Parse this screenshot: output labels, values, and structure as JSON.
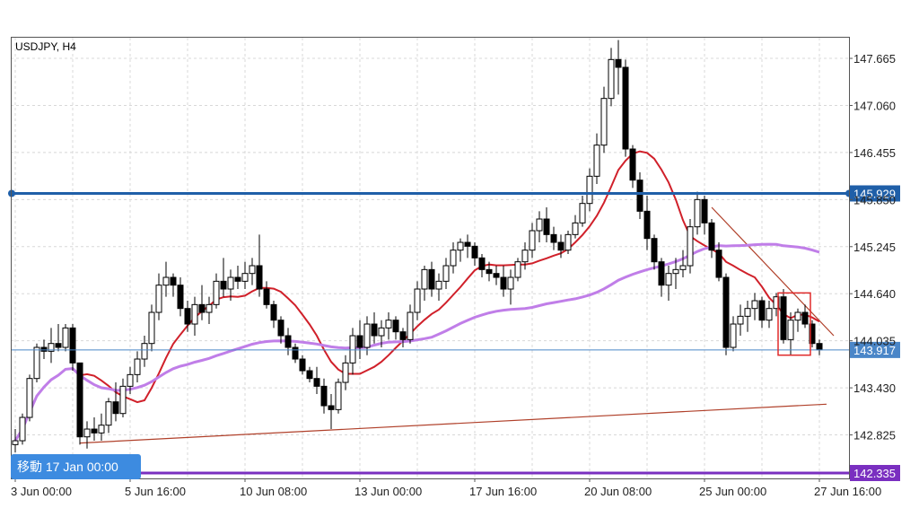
{
  "chart_data": {
    "type": "candlestick",
    "symbol": "USDJPY",
    "timeframe": "H4",
    "title": "USDJPY, H4",
    "ylim": [
      142.335,
      148.0
    ],
    "y_ticks": [
      "147.665",
      "147.060",
      "146.455",
      "145.850",
      "145.245",
      "144.640",
      "144.035",
      "143.430",
      "142.825"
    ],
    "x_ticks": [
      "3 Jun 00:00",
      "5 Jun 16:00",
      "10 Jun 08:00",
      "13 Jun 00:00",
      "17 Jun 16:00",
      "20 Jun 08:00",
      "25 Jun 00:00",
      "27 Jun 16:00"
    ],
    "x_tick_bars": [
      0,
      16,
      32,
      48,
      64,
      80,
      96,
      112
    ],
    "bar_count": 113,
    "candles": [
      [
        142.7,
        142.9,
        142.6,
        142.75
      ],
      [
        142.75,
        143.1,
        142.7,
        143.05
      ],
      [
        143.05,
        143.6,
        143.0,
        143.55
      ],
      [
        143.55,
        144.0,
        143.5,
        143.95
      ],
      [
        143.95,
        144.05,
        143.8,
        143.9
      ],
      [
        143.9,
        144.2,
        143.75,
        144.0
      ],
      [
        144.0,
        144.25,
        143.9,
        143.95
      ],
      [
        143.95,
        144.25,
        143.9,
        144.2
      ],
      [
        144.2,
        144.25,
        143.65,
        143.75
      ],
      [
        143.75,
        143.75,
        142.7,
        142.8
      ],
      [
        142.8,
        143.0,
        142.65,
        142.9
      ],
      [
        142.9,
        143.05,
        142.75,
        142.85
      ],
      [
        142.85,
        143.1,
        142.75,
        142.95
      ],
      [
        142.95,
        143.3,
        142.85,
        143.25
      ],
      [
        143.25,
        143.5,
        143.0,
        143.1
      ],
      [
        143.1,
        143.55,
        143.05,
        143.45
      ],
      [
        143.45,
        143.7,
        143.35,
        143.6
      ],
      [
        143.6,
        143.9,
        143.5,
        143.8
      ],
      [
        143.8,
        144.1,
        143.7,
        144.0
      ],
      [
        144.0,
        144.5,
        143.9,
        144.4
      ],
      [
        144.4,
        144.9,
        144.3,
        144.75
      ],
      [
        144.75,
        145.05,
        144.6,
        144.85
      ],
      [
        144.85,
        144.9,
        144.6,
        144.75
      ],
      [
        144.75,
        144.85,
        144.35,
        144.45
      ],
      [
        144.45,
        144.55,
        144.15,
        144.25
      ],
      [
        144.25,
        144.6,
        144.1,
        144.5
      ],
      [
        144.5,
        144.75,
        144.3,
        144.4
      ],
      [
        144.4,
        144.6,
        144.25,
        144.5
      ],
      [
        144.5,
        144.9,
        144.45,
        144.8
      ],
      [
        144.8,
        145.1,
        144.6,
        144.7
      ],
      [
        144.7,
        144.95,
        144.55,
        144.85
      ],
      [
        144.85,
        145.0,
        144.7,
        144.8
      ],
      [
        144.8,
        145.05,
        144.7,
        144.9
      ],
      [
        144.9,
        145.1,
        144.75,
        145.0
      ],
      [
        145.0,
        145.4,
        144.6,
        144.7
      ],
      [
        144.7,
        144.8,
        144.45,
        144.5
      ],
      [
        144.5,
        144.55,
        144.2,
        144.3
      ],
      [
        144.3,
        144.35,
        144.0,
        144.1
      ],
      [
        144.1,
        144.2,
        143.85,
        143.95
      ],
      [
        143.95,
        144.0,
        143.75,
        143.8
      ],
      [
        143.8,
        143.85,
        143.6,
        143.65
      ],
      [
        143.65,
        143.7,
        143.5,
        143.55
      ],
      [
        143.55,
        143.7,
        143.35,
        143.45
      ],
      [
        143.45,
        143.55,
        143.1,
        143.2
      ],
      [
        143.2,
        143.35,
        142.9,
        143.15
      ],
      [
        143.15,
        143.55,
        143.1,
        143.5
      ],
      [
        143.5,
        143.85,
        143.4,
        143.75
      ],
      [
        143.75,
        144.2,
        143.6,
        144.1
      ],
      [
        144.1,
        144.3,
        143.8,
        143.95
      ],
      [
        143.95,
        144.35,
        143.85,
        144.25
      ],
      [
        144.25,
        144.4,
        144.0,
        144.1
      ],
      [
        144.1,
        144.3,
        143.95,
        144.2
      ],
      [
        144.2,
        144.4,
        144.05,
        144.3
      ],
      [
        144.3,
        144.35,
        144.05,
        144.15
      ],
      [
        144.15,
        144.2,
        143.95,
        144.05
      ],
      [
        144.05,
        144.5,
        144.0,
        144.4
      ],
      [
        144.4,
        144.8,
        144.3,
        144.7
      ],
      [
        144.7,
        145.0,
        144.55,
        144.95
      ],
      [
        144.95,
        145.05,
        144.6,
        144.7
      ],
      [
        144.7,
        144.9,
        144.55,
        144.8
      ],
      [
        144.8,
        145.1,
        144.7,
        145.0
      ],
      [
        145.0,
        145.3,
        144.9,
        145.2
      ],
      [
        145.2,
        145.35,
        145.05,
        145.3
      ],
      [
        145.3,
        145.4,
        145.1,
        145.25
      ],
      [
        145.25,
        145.3,
        145.0,
        145.1
      ],
      [
        145.1,
        145.15,
        144.85,
        144.95
      ],
      [
        144.95,
        145.05,
        144.8,
        144.9
      ],
      [
        144.9,
        145.0,
        144.75,
        144.85
      ],
      [
        144.85,
        145.0,
        144.6,
        144.7
      ],
      [
        144.7,
        144.95,
        144.5,
        144.85
      ],
      [
        144.85,
        145.1,
        144.8,
        145.05
      ],
      [
        145.05,
        145.3,
        144.95,
        145.2
      ],
      [
        145.2,
        145.55,
        145.1,
        145.45
      ],
      [
        145.45,
        145.7,
        145.3,
        145.6
      ],
      [
        145.6,
        145.75,
        145.3,
        145.4
      ],
      [
        145.4,
        145.5,
        145.2,
        145.3
      ],
      [
        145.3,
        145.4,
        145.1,
        145.2
      ],
      [
        145.2,
        145.45,
        145.15,
        145.4
      ],
      [
        145.4,
        145.65,
        145.35,
        145.55
      ],
      [
        145.55,
        145.9,
        145.5,
        145.8
      ],
      [
        145.8,
        146.25,
        145.7,
        146.15
      ],
      [
        146.15,
        146.7,
        146.05,
        146.55
      ],
      [
        146.55,
        147.3,
        146.45,
        147.15
      ],
      [
        147.15,
        147.8,
        147.05,
        147.65
      ],
      [
        147.65,
        147.9,
        147.2,
        147.55
      ],
      [
        147.55,
        147.65,
        146.4,
        146.5
      ],
      [
        146.5,
        146.55,
        146.0,
        146.1
      ],
      [
        146.1,
        146.2,
        145.6,
        145.7
      ],
      [
        145.7,
        145.9,
        145.2,
        145.35
      ],
      [
        145.35,
        145.4,
        144.95,
        145.05
      ],
      [
        145.05,
        145.1,
        144.6,
        144.75
      ],
      [
        144.75,
        145.0,
        144.55,
        144.9
      ],
      [
        144.9,
        145.1,
        144.7,
        144.95
      ],
      [
        144.95,
        145.2,
        144.85,
        145.0
      ],
      [
        145.0,
        145.6,
        144.9,
        145.5
      ],
      [
        145.5,
        145.95,
        145.4,
        145.85
      ],
      [
        145.85,
        145.9,
        145.4,
        145.55
      ],
      [
        145.55,
        145.6,
        145.1,
        145.2
      ],
      [
        145.2,
        145.3,
        144.8,
        144.85
      ],
      [
        144.85,
        144.9,
        143.85,
        143.95
      ],
      [
        143.95,
        144.35,
        143.9,
        144.25
      ],
      [
        144.25,
        144.5,
        144.1,
        144.35
      ],
      [
        144.35,
        144.55,
        144.15,
        144.45
      ],
      [
        144.45,
        144.65,
        144.3,
        144.55
      ],
      [
        144.55,
        144.6,
        144.2,
        144.3
      ],
      [
        144.3,
        144.55,
        144.2,
        144.45
      ],
      [
        144.45,
        144.65,
        144.35,
        144.6
      ],
      [
        144.6,
        144.7,
        144.0,
        144.05
      ],
      [
        144.05,
        144.4,
        143.85,
        144.3
      ],
      [
        144.3,
        144.45,
        144.15,
        144.4
      ],
      [
        144.4,
        144.5,
        144.2,
        144.25
      ],
      [
        144.25,
        144.3,
        143.95,
        144.0
      ],
      [
        144.0,
        144.05,
        143.85,
        143.92
      ]
    ],
    "horizontal_lines": [
      {
        "price": 145.929,
        "label": "145.929",
        "color": "#1f5fa8"
      },
      {
        "price": 143.917,
        "label": "143.917",
        "color": "#4a86c8"
      },
      {
        "price": 142.335,
        "label": "142.335",
        "color": "#7a2fc0"
      }
    ],
    "trendlines": [
      {
        "from": [
          9,
          142.72
        ],
        "to": [
          113,
          143.22
        ],
        "color": "#b0402a"
      },
      {
        "from": [
          97,
          145.75
        ],
        "to": [
          114,
          144.1
        ],
        "color": "#b0402a"
      }
    ],
    "moving_averages": [
      {
        "period": 10,
        "color": "#d0202a"
      },
      {
        "period": 50,
        "color": "#c07ee8"
      }
    ],
    "highlight_box": {
      "bars": [
        107,
        110
      ],
      "price_range": [
        143.85,
        144.65
      ],
      "color": "#e02a2a"
    },
    "grid": true
  },
  "ui": {
    "nav_label": "移動 17 Jan 00:00",
    "nav_color": "#3d8be0"
  }
}
